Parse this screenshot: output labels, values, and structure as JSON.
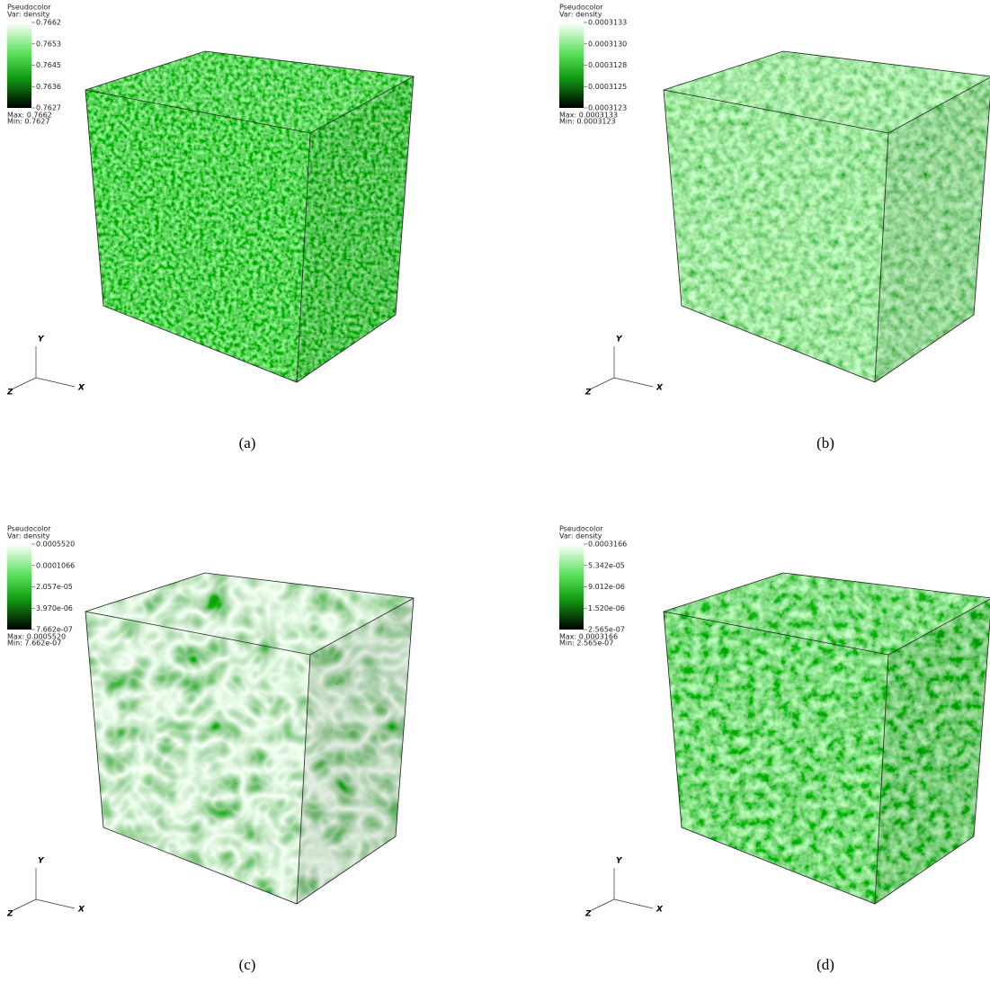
{
  "panels": [
    {
      "legend": {
        "title": "Pseudocolor",
        "variable": "Var: density",
        "ticks": [
          "0.7662",
          "0.7653",
          "0.7645",
          "0.7636",
          "0.7627"
        ],
        "max": "Max: 0.7662",
        "min": "Min: 0.7627"
      },
      "axes": {
        "y": "Y",
        "z": "Z",
        "x": "X"
      },
      "caption": "(a)"
    },
    {
      "legend": {
        "title": "Pseudocolor",
        "variable": "Var: density",
        "ticks": [
          "0.0003133",
          "0.0003130",
          "0.0003128",
          "0.0003125",
          "0.0003123"
        ],
        "max": "Max: 0.0003133",
        "min": "Min: 0.0003123"
      },
      "axes": {
        "y": "Y",
        "z": "Z",
        "x": "X"
      },
      "caption": "(b)"
    },
    {
      "legend": {
        "title": "Pseudocolor",
        "variable": "Var: density",
        "ticks": [
          "0.0005520",
          "0.0001066",
          "2.057e-05",
          "3.970e-06",
          "7.662e-07"
        ],
        "max": "Max: 0.0005520",
        "min": "Min: 7.662e-07"
      },
      "axes": {
        "y": "Y",
        "z": "Z",
        "x": "X"
      },
      "caption": "(c)"
    },
    {
      "legend": {
        "title": "Pseudocolor",
        "variable": "Var: density",
        "ticks": [
          "0.0003166",
          "5.342e-05",
          "9.012e-06",
          "1.520e-06",
          "2.565e-07"
        ],
        "max": "Max: 0.0003166",
        "min": "Min: 2.565e-07"
      },
      "axes": {
        "y": "Y",
        "z": "Z",
        "x": "X"
      },
      "caption": "(d)"
    }
  ]
}
